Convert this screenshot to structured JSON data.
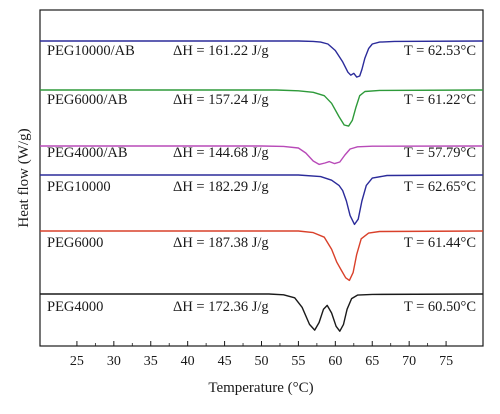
{
  "chart_data": {
    "type": "line",
    "title": "",
    "xlabel": "Temperature (°C)",
    "ylabel": "Heat flow (W/g)",
    "xlim": [
      20,
      80
    ],
    "xticks": [
      25,
      30,
      35,
      40,
      45,
      50,
      55,
      60,
      65,
      70,
      75
    ],
    "xtick_labels": [
      "25",
      "30",
      "35",
      "40",
      "45",
      "50",
      "55",
      "60",
      "65",
      "70",
      "75"
    ],
    "y_ticks_shown": false,
    "series": [
      {
        "name": "PEG10000/AB",
        "enthalpy_label": "ΔH = 161.22 J/g",
        "temperature_label": "T = 62.53°C",
        "color": "#2b2b9a",
        "points": [
          [
            20,
            0
          ],
          [
            55,
            0
          ],
          [
            57,
            -0.01
          ],
          [
            58,
            -0.03
          ],
          [
            59,
            -0.08
          ],
          [
            60,
            -0.25
          ],
          [
            61,
            -0.55
          ],
          [
            61.7,
            -0.82
          ],
          [
            62.1,
            -0.9
          ],
          [
            62.5,
            -0.85
          ],
          [
            62.9,
            -0.95
          ],
          [
            63.3,
            -0.92
          ],
          [
            63.6,
            -0.75
          ],
          [
            64,
            -0.45
          ],
          [
            64.5,
            -0.2
          ],
          [
            65,
            -0.08
          ],
          [
            66,
            -0.03
          ],
          [
            68,
            -0.01
          ],
          [
            80,
            0
          ]
        ]
      },
      {
        "name": "PEG6000/AB",
        "enthalpy_label": "ΔH = 157.24 J/g",
        "temperature_label": "T = 61.22°C",
        "color": "#2e9a3a",
        "points": [
          [
            20,
            0
          ],
          [
            52,
            0
          ],
          [
            55,
            -0.02
          ],
          [
            57,
            -0.06
          ],
          [
            58.5,
            -0.15
          ],
          [
            59.5,
            -0.35
          ],
          [
            60.5,
            -0.7
          ],
          [
            61.2,
            -0.92
          ],
          [
            61.8,
            -0.95
          ],
          [
            62.3,
            -0.8
          ],
          [
            62.8,
            -0.45
          ],
          [
            63.3,
            -0.15
          ],
          [
            64,
            -0.04
          ],
          [
            66,
            -0.01
          ],
          [
            80,
            0
          ]
        ]
      },
      {
        "name": "PEG4000/AB",
        "enthalpy_label": "ΔH = 144.68 J/g",
        "temperature_label": "T = 57.79°C",
        "color": "#b84ab8",
        "points": [
          [
            20,
            0
          ],
          [
            50,
            0
          ],
          [
            53,
            -0.02
          ],
          [
            55,
            -0.1
          ],
          [
            56,
            -0.35
          ],
          [
            57,
            -0.75
          ],
          [
            57.8,
            -0.92
          ],
          [
            58.6,
            -0.85
          ],
          [
            59.2,
            -0.78
          ],
          [
            59.9,
            -0.88
          ],
          [
            60.6,
            -0.8
          ],
          [
            61.3,
            -0.45
          ],
          [
            62,
            -0.15
          ],
          [
            63,
            -0.04
          ],
          [
            65,
            -0.01
          ],
          [
            80,
            0
          ]
        ]
      },
      {
        "name": "PEG10000",
        "enthalpy_label": "ΔH = 182.29 J/g",
        "temperature_label": "T = 62.65°C",
        "color": "#2b2b9a",
        "points": [
          [
            20,
            0
          ],
          [
            55,
            0
          ],
          [
            58,
            -0.03
          ],
          [
            59.5,
            -0.1
          ],
          [
            60.5,
            -0.2
          ],
          [
            61,
            -0.3
          ],
          [
            61.5,
            -0.5
          ],
          [
            62,
            -0.78
          ],
          [
            62.6,
            -0.95
          ],
          [
            63.1,
            -0.85
          ],
          [
            63.6,
            -0.5
          ],
          [
            64.2,
            -0.2
          ],
          [
            65,
            -0.06
          ],
          [
            67,
            -0.01
          ],
          [
            80,
            0
          ]
        ]
      },
      {
        "name": "PEG6000",
        "enthalpy_label": "ΔH = 187.38 J/g",
        "temperature_label": "T = 61.44°C",
        "color": "#d9402a",
        "points": [
          [
            20,
            0
          ],
          [
            55,
            0
          ],
          [
            57,
            -0.03
          ],
          [
            58.5,
            -0.12
          ],
          [
            59.5,
            -0.35
          ],
          [
            60.2,
            -0.6
          ],
          [
            60.8,
            -0.75
          ],
          [
            61.4,
            -0.9
          ],
          [
            61.9,
            -0.95
          ],
          [
            62.4,
            -0.8
          ],
          [
            62.9,
            -0.45
          ],
          [
            63.5,
            -0.15
          ],
          [
            64.5,
            -0.04
          ],
          [
            66,
            -0.01
          ],
          [
            80,
            0
          ]
        ]
      },
      {
        "name": "PEG4000",
        "enthalpy_label": "ΔH = 172.36 J/g",
        "temperature_label": "T = 60.50°C",
        "color": "#1a1a1a",
        "points": [
          [
            20,
            0
          ],
          [
            51,
            0
          ],
          [
            53,
            -0.02
          ],
          [
            54.5,
            -0.1
          ],
          [
            55.5,
            -0.35
          ],
          [
            56.5,
            -0.8
          ],
          [
            57.2,
            -0.95
          ],
          [
            57.8,
            -0.75
          ],
          [
            58.4,
            -0.4
          ],
          [
            58.9,
            -0.3
          ],
          [
            59.5,
            -0.5
          ],
          [
            60.1,
            -0.85
          ],
          [
            60.6,
            -0.98
          ],
          [
            61.1,
            -0.8
          ],
          [
            61.6,
            -0.4
          ],
          [
            62.2,
            -0.12
          ],
          [
            63,
            -0.03
          ],
          [
            65,
            -0.01
          ],
          [
            80,
            0
          ]
        ]
      }
    ]
  }
}
